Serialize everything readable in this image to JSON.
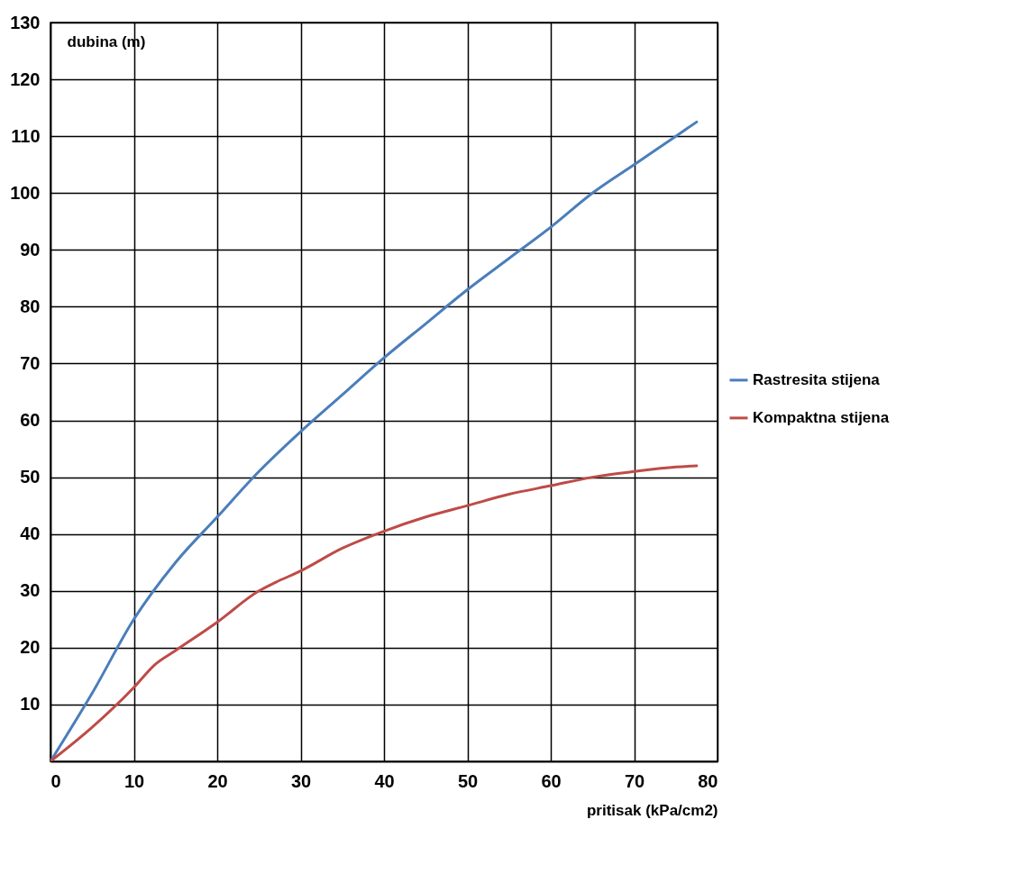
{
  "chart_data": {
    "type": "line",
    "xlabel": "pritisak (kPa/cm2)",
    "ylabel": "dubina (m)",
    "xlim": [
      0,
      80
    ],
    "ylim": [
      0,
      130
    ],
    "xticks": [
      0,
      10,
      20,
      30,
      40,
      50,
      60,
      70,
      80
    ],
    "yticks": [
      {
        "value": 0,
        "label": null
      },
      10,
      20,
      30,
      40,
      50,
      60,
      70,
      80,
      90,
      100,
      110,
      120,
      130
    ],
    "grid": true,
    "legend": "right",
    "line_style": "solid",
    "series": [
      {
        "name": "Rastresita stijena",
        "color": "#4a7ebb",
        "x": [
          0,
          5,
          10,
          15,
          20,
          25,
          30,
          35,
          40,
          45,
          50,
          55,
          60,
          65,
          70,
          75,
          77.5
        ],
        "values": [
          0,
          12,
          25,
          35,
          43,
          51,
          58,
          64.5,
          71,
          77,
          83,
          88.5,
          94,
          100,
          105,
          110,
          112.5
        ]
      },
      {
        "name": "Kompaktna stijena",
        "color": "#be4b48",
        "x": [
          0,
          5,
          10,
          12.5,
          15,
          20,
          25,
          27,
          30,
          35,
          40,
          45,
          50,
          55,
          60,
          65,
          70,
          75,
          77.5
        ],
        "values": [
          0,
          6,
          13,
          17,
          19.5,
          24.5,
          30,
          31.5,
          33.5,
          37.5,
          40.5,
          43,
          45,
          47,
          48.5,
          50,
          51,
          51.8,
          52
        ]
      }
    ]
  }
}
